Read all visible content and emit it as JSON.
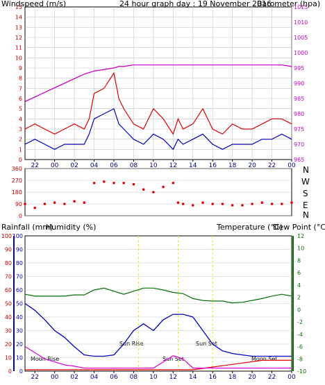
{
  "header": {
    "wind_label": "Windspeed (m/s)",
    "title": "24 hour graph day : 19 November 2016",
    "baro_label": "Barometer (hpa)"
  },
  "direction_labels": [
    "N",
    "W",
    "S",
    "E",
    "N"
  ],
  "bottom_labels": {
    "rain_label": "Rainfall (mm)",
    "hum_label": "Humidity (%)",
    "temp_label": "Temperature (°C)",
    "dew_label": "Dew Point (°C)"
  },
  "x_ticks": [
    "22",
    "00",
    "02",
    "04",
    "06",
    "08",
    "10",
    "12",
    "14",
    "16",
    "18",
    "20",
    "22",
    "00"
  ],
  "events": {
    "moonrise_label": "Moon Rise",
    "sunrise_label": "Sun Rise",
    "sunset_label": "Sun Set",
    "moonset_label": "Moon Set"
  },
  "colors": {
    "wind_gust": "#e00000",
    "wind_avg": "#0000c0",
    "barometer": "#cc00cc",
    "direction": "#e00000",
    "rainfall": "#e00000",
    "humidity": "#0000c0",
    "temperature": "#007000",
    "dewpoint": "#e000e0",
    "events": "#e8e800",
    "grid": "#c8c8c8"
  },
  "chart_data": [
    {
      "type": "line",
      "title": "24 hour graph day : 19 November 2016",
      "x_hours": [
        -3,
        -2,
        -1,
        0,
        1,
        2,
        3,
        3.5,
        4,
        5,
        6,
        6.5,
        7,
        8,
        9,
        10,
        11,
        12,
        12.5,
        13,
        14,
        15,
        16,
        17,
        18,
        19,
        20,
        21,
        22,
        23,
        24
      ],
      "series": [
        {
          "name": "Windspeed (m/s)",
          "kind": "gust",
          "values": [
            3,
            3.5,
            3,
            2.5,
            3,
            3.5,
            3,
            4,
            6.5,
            7,
            8.5,
            6,
            5,
            3.5,
            3,
            5,
            4,
            2.5,
            4,
            3,
            3.5,
            5,
            3,
            2.5,
            3.5,
            3,
            3,
            3.5,
            4,
            4,
            3.5
          ]
        },
        {
          "name": "Windspeed (m/s)",
          "kind": "average",
          "values": [
            1.5,
            2,
            1.5,
            1,
            1.5,
            1.5,
            1.5,
            2.5,
            4,
            4.5,
            5,
            3.5,
            3,
            2,
            1.5,
            2.5,
            2,
            1,
            2,
            1.5,
            2,
            2.5,
            1.5,
            1,
            1.5,
            1.5,
            1.5,
            2,
            2,
            2.5,
            2
          ]
        },
        {
          "name": "Barometer (hpa)",
          "values": [
            984,
            985.5,
            987,
            988.5,
            990,
            991.5,
            993,
            993.5,
            994,
            994.5,
            995,
            995.5,
            995.5,
            996,
            996,
            996,
            996,
            996,
            996,
            996,
            996,
            996,
            996,
            996,
            996,
            996,
            996,
            996,
            996,
            996,
            995.5
          ]
        }
      ],
      "ylim_wind": [
        0,
        15
      ],
      "ylim_baro": [
        965,
        1015
      ]
    },
    {
      "type": "scatter",
      "y_ticks": [
        "360",
        "270",
        "180",
        "90",
        "0"
      ],
      "x_hours": [
        -3,
        -2,
        -1,
        0,
        1,
        2,
        3,
        4,
        5,
        6,
        7,
        8,
        9,
        10,
        11,
        12,
        12.5,
        13,
        14,
        15,
        16,
        17,
        18,
        19,
        20,
        21,
        22,
        23,
        24
      ],
      "values": [
        90,
        60,
        90,
        100,
        90,
        110,
        100,
        250,
        260,
        250,
        250,
        240,
        200,
        180,
        220,
        250,
        100,
        90,
        80,
        100,
        90,
        90,
        80,
        80,
        90,
        100,
        90,
        90,
        100
      ],
      "ylim": [
        0,
        360
      ]
    },
    {
      "type": "line",
      "x_hours": [
        -3,
        -2,
        -1,
        0,
        1,
        2,
        3,
        4,
        5,
        6,
        7,
        8,
        9,
        10,
        11,
        12,
        13,
        14,
        15,
        16,
        17,
        18,
        19,
        20,
        21,
        22,
        23,
        24
      ],
      "series": [
        {
          "name": "Humidity (%)",
          "values": [
            50,
            45,
            38,
            30,
            25,
            18,
            12,
            11,
            11,
            12,
            20,
            30,
            35,
            30,
            38,
            42,
            42,
            40,
            30,
            20,
            15,
            13,
            12,
            11,
            11,
            11,
            11,
            11
          ]
        },
        {
          "name": "Rainfall (mm)",
          "values": [
            1,
            1,
            1,
            1,
            1,
            1,
            1,
            1,
            1,
            1,
            1,
            1,
            1,
            1,
            1,
            1,
            1,
            1,
            2,
            3,
            4,
            5,
            6,
            7,
            8,
            8,
            8,
            8
          ]
        },
        {
          "name": "Temperature (°C)",
          "values": [
            2.5,
            2.2,
            2.2,
            2.2,
            2.2,
            2.4,
            2.4,
            3.2,
            3.5,
            3.0,
            2.5,
            3.0,
            3.5,
            3.5,
            3.2,
            2.8,
            2.6,
            1.8,
            1.5,
            1.4,
            1.4,
            1.1,
            1.2,
            1.5,
            1.8,
            2.2,
            2.5,
            2.2
          ]
        },
        {
          "name": "Dew Point (°C)",
          "values": [
            -6,
            -7,
            -8,
            -8.5,
            -9,
            -9.2,
            -9.5,
            -9.5,
            -9.5,
            -9.5,
            -9.5,
            -9.5,
            -9.5,
            -9.5,
            -8.5,
            -7.5,
            -8,
            -9.5,
            -9.5,
            -9.5,
            -9.5,
            -9.5,
            -9.5,
            -9.5,
            -9.5,
            -9.5,
            -9.5,
            -9.5
          ]
        }
      ],
      "ylim_left": [
        0,
        100
      ],
      "ylim_temp": [
        -10,
        12
      ]
    }
  ]
}
